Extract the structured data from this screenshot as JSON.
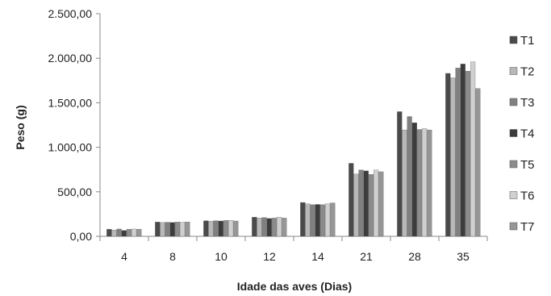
{
  "chart_data": {
    "type": "bar",
    "title": "",
    "xlabel": "Idade das aves (Dias)",
    "ylabel": "Peso (g)",
    "ylim": [
      0,
      2500
    ],
    "yticks": [
      0,
      500,
      1000,
      1500,
      2000,
      2500
    ],
    "ytick_labels": [
      "0,00",
      "500,00",
      "1.000,00",
      "1.500,00",
      "2.000,00",
      "2.500,00"
    ],
    "categories": [
      "4",
      "8",
      "10",
      "12",
      "14",
      "21",
      "28",
      "35"
    ],
    "grid": false,
    "legend_position": "right",
    "series": [
      {
        "name": "T1",
        "color": "#4a4a4a",
        "values": [
          80,
          160,
          175,
          215,
          380,
          820,
          1400,
          1830
        ]
      },
      {
        "name": "T2",
        "color": "#b8b8b8",
        "values": [
          70,
          155,
          170,
          205,
          365,
          700,
          1195,
          1780
        ]
      },
      {
        "name": "T3",
        "color": "#808080",
        "values": [
          82,
          158,
          175,
          210,
          355,
          745,
          1345,
          1890
        ]
      },
      {
        "name": "T4",
        "color": "#3c3c3c",
        "values": [
          65,
          155,
          172,
          200,
          358,
          735,
          1275,
          1935
        ]
      },
      {
        "name": "T5",
        "color": "#8c8c8c",
        "values": [
          80,
          160,
          178,
          205,
          355,
          695,
          1200,
          1855
        ]
      },
      {
        "name": "T6",
        "color": "#d0d0d0",
        "values": [
          82,
          158,
          180,
          215,
          365,
          745,
          1210,
          1960
        ]
      },
      {
        "name": "T7",
        "color": "#969696",
        "values": [
          80,
          160,
          172,
          205,
          375,
          725,
          1195,
          1660
        ]
      }
    ]
  }
}
